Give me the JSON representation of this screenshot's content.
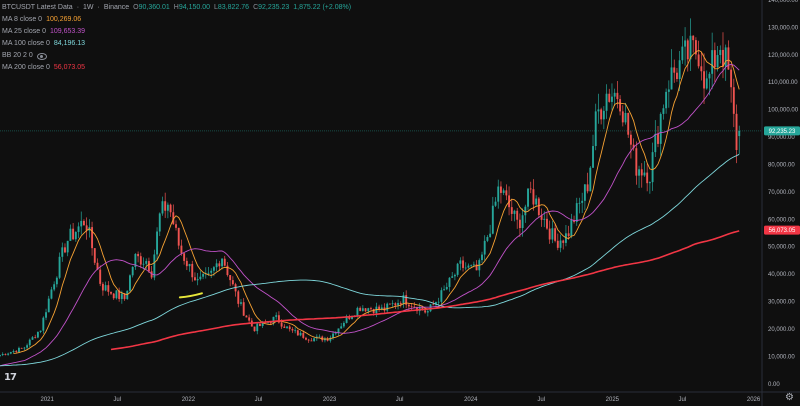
{
  "header": {
    "symbol": "BTCUSDT Latest Data",
    "interval": "1W",
    "exchange": "Binance",
    "ohlc": [
      {
        "key": "O",
        "value": "90,360.01"
      },
      {
        "key": "H",
        "value": "94,150.00"
      },
      {
        "key": "L",
        "value": "83,822.76"
      },
      {
        "key": "C",
        "value": "92,235.23"
      }
    ],
    "change": "1,875.22 (+2.08%)"
  },
  "indicators": [
    {
      "label": "MA 8 close 0",
      "value": "100,269.06",
      "color": "#f7a233"
    },
    {
      "label": "MA 25 close 0",
      "value": "109,653.39",
      "color": "#c052c8"
    },
    {
      "label": "MA 100 close 0",
      "value": "84,196.13",
      "color": "#7fd8dc"
    },
    {
      "label": "BB 20 2 0",
      "value": "",
      "color": "#8b8f99"
    },
    {
      "label": "MA 200 close 0",
      "value": "56,073.05",
      "color": "#f23645"
    }
  ],
  "colors": {
    "up": "#26a69a",
    "down": "#ef5350",
    "bg": "#0f0f0f"
  },
  "chart_data": {
    "type": "candlestick",
    "interval": "weekly",
    "x_axis_labels": [
      "2021",
      "Jul",
      "2022",
      "Jul",
      "2023",
      "Jul",
      "2024",
      "Jul",
      "2025",
      "Jul",
      "2026"
    ],
    "y_axis": {
      "min": -3000,
      "max": 140000,
      "scale": "linear",
      "position": "right",
      "ticks": [
        "140,000.00",
        "130,000.00",
        "120,000.00",
        "110,000.00",
        "100,000.00",
        "90,000.00",
        "80,000.00",
        "70,000.00",
        "60,000.00",
        "50,000.00",
        "40,000.00",
        "30,000.00",
        "20,000.00",
        "10,000.00",
        "0.00"
      ],
      "tick_values": [
        140000,
        130000,
        120000,
        110000,
        100000,
        90000,
        80000,
        70000,
        60000,
        50000,
        40000,
        30000,
        20000,
        10000,
        0
      ]
    },
    "time_range": [
      "2020-09",
      "2025-12"
    ],
    "anchors": [
      [
        "2020-09-01",
        10500
      ],
      [
        "2020-11-01",
        13000
      ],
      [
        "2020-12-15",
        20000
      ],
      [
        "2021-01-15",
        36000
      ],
      [
        "2021-02-20",
        52000
      ],
      [
        "2021-04-10",
        60000
      ],
      [
        "2021-04-25",
        51000
      ],
      [
        "2021-05-20",
        36000
      ],
      [
        "2021-06-20",
        33000
      ],
      [
        "2021-07-20",
        31000
      ],
      [
        "2021-08-15",
        46000
      ],
      [
        "2021-09-15",
        45000
      ],
      [
        "2021-09-28",
        41000
      ],
      [
        "2021-10-20",
        62000
      ],
      [
        "2021-11-10",
        66000
      ],
      [
        "2021-12-10",
        49000
      ],
      [
        "2022-01-25",
        37000
      ],
      [
        "2022-02-25",
        39000
      ],
      [
        "2022-03-28",
        47000
      ],
      [
        "2022-05-10",
        30000
      ],
      [
        "2022-06-18",
        20000
      ],
      [
        "2022-08-15",
        24000
      ],
      [
        "2022-09-20",
        19500
      ],
      [
        "2022-11-10",
        16500
      ],
      [
        "2022-12-30",
        16600
      ],
      [
        "2023-02-15",
        24000
      ],
      [
        "2023-03-20",
        28000
      ],
      [
        "2023-05-20",
        27000
      ],
      [
        "2023-07-10",
        31000
      ],
      [
        "2023-09-10",
        26000
      ],
      [
        "2023-10-25",
        34000
      ],
      [
        "2023-12-05",
        43000
      ],
      [
        "2024-01-20",
        41000
      ],
      [
        "2024-02-28",
        62000
      ],
      [
        "2024-03-14",
        72000
      ],
      [
        "2024-05-01",
        58000
      ],
      [
        "2024-06-05",
        70000
      ],
      [
        "2024-08-05",
        52000
      ],
      [
        "2024-09-05",
        54000
      ],
      [
        "2024-10-28",
        72000
      ],
      [
        "2024-11-22",
        98000
      ],
      [
        "2024-12-17",
        106000
      ],
      [
        "2025-01-20",
        106000
      ],
      [
        "2025-02-28",
        80000
      ],
      [
        "2025-04-08",
        77000
      ],
      [
        "2025-05-22",
        110000
      ],
      [
        "2025-07-14",
        120000
      ],
      [
        "2025-08-14",
        122000
      ],
      [
        "2025-09-01",
        108000
      ],
      [
        "2025-10-06",
        125000
      ],
      [
        "2025-10-28",
        113000
      ],
      [
        "2025-11-21",
        84000
      ],
      [
        "2025-12-01",
        92235
      ]
    ],
    "last_bar": {
      "open": 90360.01,
      "high": 94150.0,
      "low": 83822.76,
      "close": 92235.23
    },
    "price_labels": [
      {
        "value": 92235.23,
        "text": "92,235.23",
        "color": "#26a69a"
      },
      {
        "value": 56073.05,
        "text": "56,073.05",
        "color": "#f23645"
      }
    ],
    "moving_averages": [
      {
        "period": 8,
        "color": "#f7a233"
      },
      {
        "period": 25,
        "color": "#c052c8"
      },
      {
        "period": 100,
        "color": "#7fd8dc"
      },
      {
        "period": 200,
        "color": "#f23645"
      }
    ],
    "annotation": {
      "type": "hand-drawn line",
      "color": "#e7e73a",
      "points": [
        [
          "2021-12-10",
          31500
        ],
        [
          "2022-02-05",
          33000
        ]
      ]
    },
    "grid": false,
    "legend_position": "top-left"
  }
}
